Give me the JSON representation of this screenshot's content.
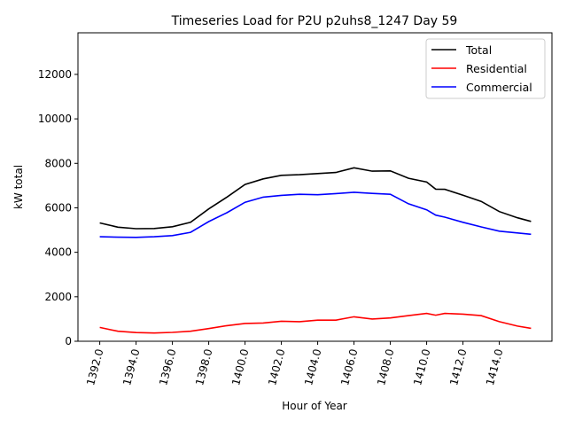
{
  "chart_data": {
    "type": "line",
    "title": "Timeseries Load for P2U p2uhs8_1247  Day 59",
    "xlabel": "Hour of Year",
    "ylabel": "kW total",
    "xlim": [
      1390.8,
      1416.9
    ],
    "ylim": [
      0,
      13870
    ],
    "xticks": [
      1392,
      1394,
      1396,
      1398,
      1400,
      1402,
      1404,
      1406,
      1408,
      1410,
      1412,
      1414
    ],
    "xtick_labels": [
      "1392.0",
      "1394.0",
      "1396.0",
      "1398.0",
      "1400.0",
      "1402.0",
      "1404.0",
      "1406.0",
      "1408.0",
      "1410.0",
      "1412.0",
      "1414.0"
    ],
    "yticks": [
      0,
      2000,
      4000,
      6000,
      8000,
      10000,
      12000
    ],
    "ytick_labels": [
      "0",
      "2000",
      "4000",
      "6000",
      "8000",
      "10000",
      "12000"
    ],
    "legend_position": "top-right",
    "x": [
      1392,
      1393,
      1394,
      1395,
      1396,
      1397,
      1398,
      1399,
      1400,
      1401,
      1402,
      1403,
      1404,
      1405,
      1406,
      1407,
      1408,
      1409,
      1410,
      1410.5,
      1411,
      1412,
      1413,
      1414,
      1415,
      1415.75
    ],
    "series": [
      {
        "name": "Total",
        "color": "#000000",
        "values": [
          5320,
          5130,
          5060,
          5070,
          5150,
          5350,
          5950,
          6480,
          7050,
          7300,
          7460,
          7490,
          7540,
          7590,
          7800,
          7650,
          7660,
          7330,
          7160,
          6840,
          6830,
          6570,
          6290,
          5830,
          5550,
          5390
        ]
      },
      {
        "name": "Residential",
        "color": "#ff0000",
        "values": [
          620,
          450,
          390,
          370,
          400,
          450,
          570,
          700,
          800,
          820,
          900,
          880,
          950,
          950,
          1100,
          1000,
          1050,
          1150,
          1250,
          1170,
          1250,
          1220,
          1150,
          880,
          680,
          580
        ]
      },
      {
        "name": "Commercial",
        "color": "#0000ff",
        "values": [
          4700,
          4680,
          4670,
          4700,
          4750,
          4900,
          5380,
          5780,
          6250,
          6480,
          6560,
          6610,
          6590,
          6640,
          6700,
          6650,
          6610,
          6180,
          5910,
          5670,
          5580,
          5350,
          5140,
          4950,
          4870,
          4810
        ]
      }
    ]
  }
}
